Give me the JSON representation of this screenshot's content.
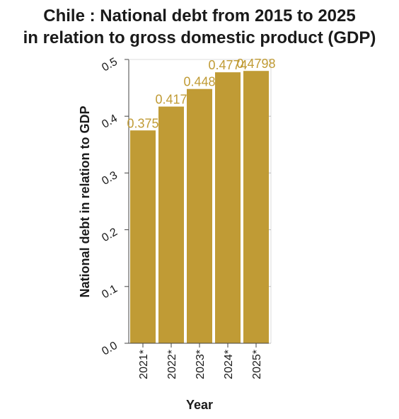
{
  "chart_data": {
    "type": "bar",
    "title_lines": [
      "Chile : National debt from 2015 to 2025",
      "in relation to gross domestic product (GDP)"
    ],
    "xlabel": "Year",
    "ylabel": "National debt in relation to GDP",
    "categories": [
      "2021*",
      "2022*",
      "2023*",
      "2024*",
      "2025*"
    ],
    "values": [
      0.375,
      0.417,
      0.448,
      0.4774,
      0.4798
    ],
    "data_labels": [
      "0.375",
      "0.417",
      "0.448",
      "0.4774",
      "0.4798"
    ],
    "ylim": [
      0,
      0.5
    ],
    "yticks": [
      0.0,
      0.1,
      0.2,
      0.3,
      0.4,
      0.5
    ],
    "ytick_labels": [
      "0.0",
      "0.1",
      "0.2",
      "0.3",
      "0.4",
      "0.5"
    ],
    "grid": false,
    "legend": "none",
    "colors": {
      "bar": "#c09b35",
      "label": "#c09b35",
      "axis": "#444444"
    }
  }
}
